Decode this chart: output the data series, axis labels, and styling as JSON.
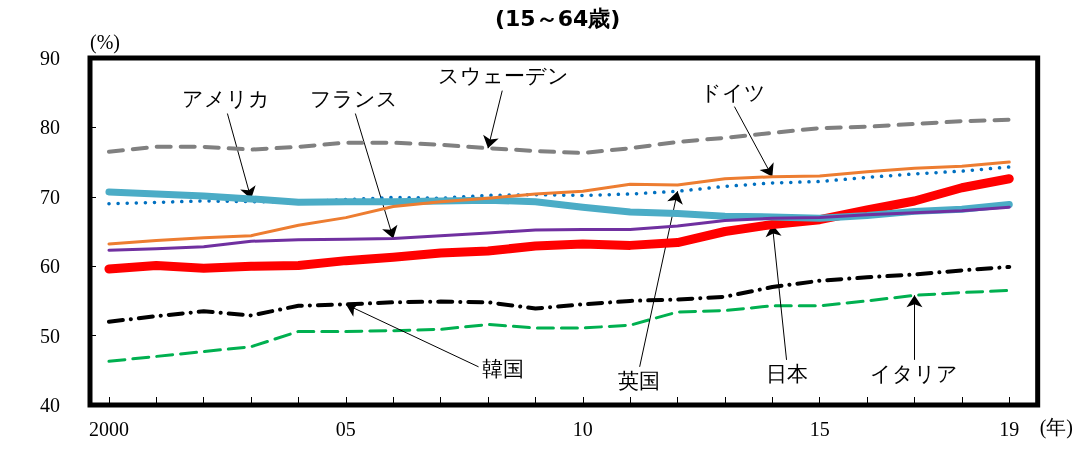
{
  "chart_data": {
    "type": "line",
    "title": "(15～64歳)",
    "xlabel": "(年)",
    "ylabel": "(%)",
    "x": [
      2000,
      2001,
      2002,
      2003,
      2004,
      2005,
      2006,
      2007,
      2008,
      2009,
      2010,
      2011,
      2012,
      2013,
      2014,
      2015,
      2016,
      2017,
      2018,
      2019
    ],
    "xlim": [
      1999.6,
      2019.6
    ],
    "xticks": [
      {
        "value": 2000,
        "label": "2000"
      },
      {
        "value": 2001,
        "label": null
      },
      {
        "value": 2002,
        "label": null
      },
      {
        "value": 2003,
        "label": null
      },
      {
        "value": 2004,
        "label": null
      },
      {
        "value": 2005,
        "label": "05"
      },
      {
        "value": 2006,
        "label": null
      },
      {
        "value": 2007,
        "label": null
      },
      {
        "value": 2008,
        "label": null
      },
      {
        "value": 2009,
        "label": null
      },
      {
        "value": 2010,
        "label": "10"
      },
      {
        "value": 2011,
        "label": null
      },
      {
        "value": 2012,
        "label": null
      },
      {
        "value": 2013,
        "label": null
      },
      {
        "value": 2014,
        "label": null
      },
      {
        "value": 2015,
        "label": "15"
      },
      {
        "value": 2016,
        "label": null
      },
      {
        "value": 2017,
        "label": null
      },
      {
        "value": 2018,
        "label": null
      },
      {
        "value": 2019,
        "label": "19"
      }
    ],
    "ylim": [
      40,
      90
    ],
    "yticks": [
      40,
      50,
      60,
      70,
      80,
      90
    ],
    "grid": false,
    "legend": false,
    "marker": "none",
    "series": [
      {
        "name": "スウェーデン",
        "color": "#808080",
        "line_style": "dashed",
        "values": [
          76.5,
          77.2,
          77.2,
          76.8,
          77.2,
          77.8,
          77.8,
          77.5,
          77.0,
          76.6,
          76.3,
          77.0,
          77.9,
          78.5,
          79.2,
          79.9,
          80.1,
          80.5,
          80.9,
          81.1
        ]
      },
      {
        "name": "アメリカ",
        "color": "#4bacc6",
        "line_style": "solid",
        "values": [
          70.7,
          70.4,
          70.1,
          69.7,
          69.2,
          69.3,
          69.3,
          69.4,
          69.5,
          69.3,
          68.5,
          67.8,
          67.6,
          67.2,
          67.1,
          66.9,
          67.3,
          67.9,
          68.2,
          68.9
        ]
      },
      {
        "name": "英国",
        "color": "#0070c0",
        "line_style": "dotted",
        "values": [
          69.0,
          69.2,
          69.4,
          69.3,
          69.3,
          69.6,
          69.9,
          69.8,
          70.2,
          70.3,
          70.2,
          70.4,
          70.8,
          71.5,
          72.0,
          72.2,
          72.8,
          73.3,
          73.7,
          74.3
        ]
      },
      {
        "name": "ドイツ",
        "color": "#ed7d31",
        "line_style": "solid",
        "values": [
          63.2,
          63.7,
          64.1,
          64.4,
          65.9,
          67.0,
          68.6,
          69.3,
          69.8,
          70.4,
          70.8,
          71.8,
          71.7,
          72.6,
          72.9,
          73.0,
          73.6,
          74.1,
          74.4,
          75.0
        ]
      },
      {
        "name": "フランス",
        "color": "#7030a0",
        "line_style": "solid",
        "values": [
          62.3,
          62.5,
          62.8,
          63.6,
          63.8,
          63.9,
          64.0,
          64.4,
          64.8,
          65.2,
          65.3,
          65.3,
          65.8,
          66.6,
          66.9,
          67.0,
          67.4,
          67.7,
          68.0,
          68.5
        ]
      },
      {
        "name": "日本",
        "color": "#ff0000",
        "line_style": "solid",
        "values": [
          59.6,
          60.1,
          59.7,
          60.0,
          60.1,
          60.8,
          61.3,
          61.9,
          62.2,
          62.9,
          63.2,
          63.0,
          63.4,
          65.0,
          66.0,
          66.7,
          68.1,
          69.4,
          71.3,
          72.6
        ]
      },
      {
        "name": "韓国",
        "color": "#000000",
        "line_style": "dashed",
        "values": [
          52.0,
          52.8,
          53.5,
          52.9,
          54.3,
          54.5,
          54.8,
          54.9,
          54.8,
          53.9,
          54.5,
          55.0,
          55.2,
          55.6,
          57.0,
          57.9,
          58.4,
          58.8,
          59.4,
          59.9
        ]
      },
      {
        "name": "イタリア",
        "color": "#00b050",
        "line_style": "dashed",
        "values": [
          46.3,
          47.0,
          47.7,
          48.4,
          50.6,
          50.6,
          50.7,
          50.9,
          51.6,
          51.1,
          51.1,
          51.5,
          53.4,
          53.6,
          54.3,
          54.3,
          55.0,
          55.8,
          56.2,
          56.5
        ]
      }
    ]
  }
}
